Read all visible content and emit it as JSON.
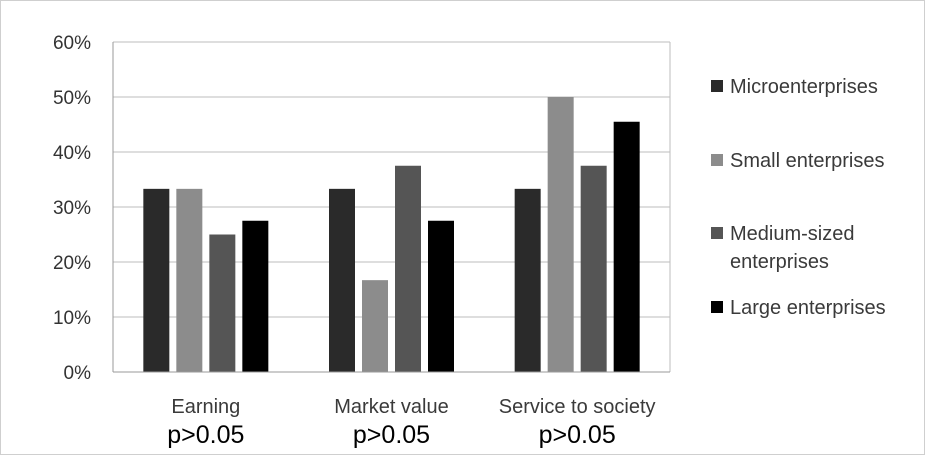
{
  "chart_data": {
    "type": "bar",
    "categories": [
      "Earning",
      "Market value",
      "Service to society"
    ],
    "category_notes": [
      "p>0.05",
      "p>0.05",
      "p>0.05"
    ],
    "series": [
      {
        "name": "Microenterprises",
        "values": [
          33.3,
          33.3,
          33.3
        ],
        "color": "#2a2a2a"
      },
      {
        "name": "Small enterprises",
        "values": [
          33.3,
          16.7,
          50.0
        ],
        "color": "#8c8c8c"
      },
      {
        "name": "Medium-sized enterprises",
        "values": [
          25.0,
          37.5,
          37.5
        ],
        "color": "#555555"
      },
      {
        "name": "Large enterprises",
        "values": [
          27.5,
          27.5,
          45.5
        ],
        "color": "#000000"
      }
    ],
    "ylim": [
      0,
      60
    ],
    "y_ticks": [
      0,
      10,
      20,
      30,
      40,
      50,
      60
    ],
    "y_tick_labels": [
      "0%",
      "10%",
      "20%",
      "30%",
      "40%",
      "50%",
      "60%"
    ],
    "grid": true,
    "legend_position": "right"
  }
}
